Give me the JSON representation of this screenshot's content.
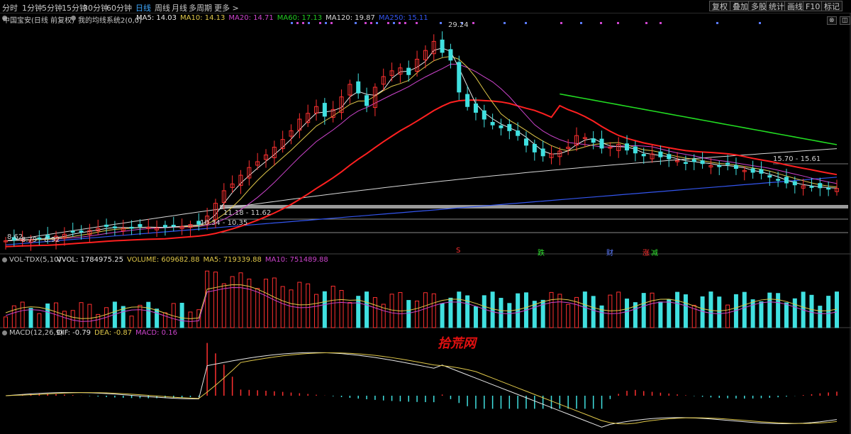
{
  "toolbar": {
    "periods": [
      "分时",
      "1分钟",
      "5分钟",
      "15分钟",
      "30分钟",
      "60分钟",
      "日线",
      "周线",
      "月线",
      "多周期",
      "更多 >"
    ],
    "active_period": "日线",
    "right_buttons": [
      "复权",
      "叠加",
      "多股",
      "统计",
      "画线",
      "F10",
      "标记"
    ]
  },
  "main_panel": {
    "stock": "中国宝安(日线 前复权)",
    "indicator_name": "我的均线系统2(0,0)",
    "ma_labels": [
      {
        "text": "MA5: 14.03",
        "color": "#e8e8e8"
      },
      {
        "text": "MA10: 14.13",
        "color": "#e0c84a"
      },
      {
        "text": "MA20: 14.71",
        "color": "#cc44cc"
      },
      {
        "text": "MA60: 17.13",
        "color": "#22cc22"
      },
      {
        "text": "MA120: 19.87",
        "color": "#d8d8d8"
      },
      {
        "text": "MA250: 15.11",
        "color": "#3355ee"
      }
    ],
    "annotations": [
      "29.24",
      "15.70 - 15.61",
      "11.18 - 11.62",
      "10.34 - 10.35",
      "8.79 - 8.92",
      "8.62"
    ],
    "signals": [
      {
        "text": "S",
        "color": "#ff3030"
      },
      {
        "text": "跌",
        "color": "#30e030"
      },
      {
        "text": "财",
        "color": "#5a7aff"
      },
      {
        "text": "涨",
        "color": "#ff3030"
      },
      {
        "text": "减",
        "color": "#30e030"
      }
    ]
  },
  "volume_panel": {
    "title": "VOL-TDX(5,10)",
    "labels": [
      {
        "text": "VVOL: 1784975.25",
        "color": "#e8e8e8"
      },
      {
        "text": "VOLUME: 609682.88",
        "color": "#e0c84a"
      },
      {
        "text": "MA5: 719339.88",
        "color": "#e0c84a"
      },
      {
        "text": "MA10: 751489.88",
        "color": "#cc44cc"
      }
    ]
  },
  "macd_panel": {
    "title": "MACD(12,26,9)",
    "labels": [
      {
        "text": "DIF: -0.79",
        "color": "#e8e8e8"
      },
      {
        "text": "DEA: -0.87",
        "color": "#e0c84a"
      },
      {
        "text": "MACD: 0.16",
        "color": "#cc44cc"
      }
    ]
  },
  "watermark": "拾荒网",
  "colors": {
    "up": "#ff3030",
    "down": "#40e0e0",
    "ma5": "#e8e8e8",
    "ma10": "#e0c84a",
    "ma20": "#cc44cc",
    "ma60": "#ff2020",
    "ma120": "#d8d8d8",
    "ma250": "#3355ee",
    "ma_long": "#22dd22"
  },
  "chart_data": {
    "type": "candlestick",
    "series_close": [
      8.62,
      8.7,
      8.8,
      8.75,
      8.9,
      8.85,
      9.1,
      9.3,
      9.5,
      9.6,
      9.7,
      9.9,
      10.1,
      10.0,
      9.9,
      10.0,
      10.1,
      10.0,
      9.95,
      10.05,
      10.2,
      10.1,
      10.3,
      10.34,
      11.18,
      12.5,
      13.8,
      14.5,
      15.4,
      16.2,
      16.8,
      17.5,
      18.3,
      19.1,
      20.0,
      21.2,
      21.8,
      22.5,
      21.5,
      22.2,
      23.5,
      24.8,
      23.9,
      22.6,
      24.5,
      25.6,
      26.2,
      26.5,
      25.8,
      27.4,
      28.3,
      29.24,
      28.1,
      27.3,
      24.0,
      22.5,
      21.9,
      21.2,
      20.6,
      20.3,
      20.0,
      19.5,
      18.5,
      17.8,
      17.4,
      17.6,
      17.9,
      18.3,
      19.5,
      19.3,
      18.8,
      18.2,
      18.3,
      18.6,
      18.0,
      17.7,
      17.4,
      17.6,
      17.3,
      17.1,
      16.9,
      16.7,
      16.8,
      16.6,
      16.4,
      16.3,
      16.5,
      16.1,
      15.9,
      15.7,
      15.6,
      15.2,
      14.9,
      14.6,
      14.4,
      14.3,
      14.2,
      14.1,
      14.05,
      14.03
    ],
    "macd_dif_range": [
      -1.6,
      2.0
    ],
    "last": {
      "MA5": 14.03,
      "MA10": 14.13,
      "MA20": 14.71,
      "MA60": 17.13,
      "MA120": 19.87,
      "MA250": 15.11,
      "VOLUME": 609682.88,
      "DIF": -0.79,
      "DEA": -0.87,
      "MACD": 0.16
    }
  }
}
